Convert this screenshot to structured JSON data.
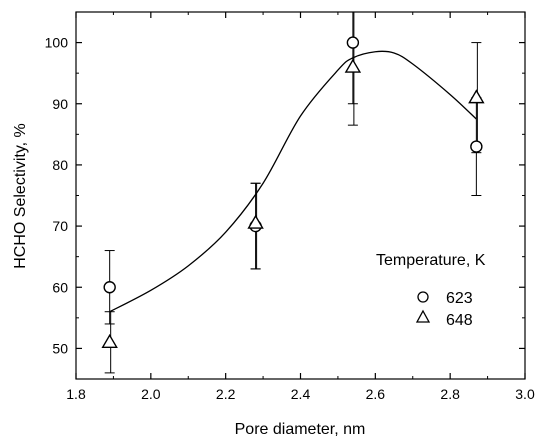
{
  "chart_data": {
    "type": "scatter",
    "xlabel": "Pore diameter, nm",
    "ylabel": "HCHO Selectivity, %",
    "xlim": [
      1.8,
      3.0
    ],
    "ylim": [
      45,
      105
    ],
    "xticks": [
      1.8,
      2.0,
      2.2,
      2.4,
      2.6,
      2.8,
      3.0
    ],
    "xtick_labels": [
      "1.8",
      "2.0",
      "2.2",
      "2.4",
      "2.6",
      "2.8",
      "3.0"
    ],
    "yticks": [
      50,
      60,
      70,
      80,
      90,
      100
    ],
    "ytick_labels": [
      "50",
      "60",
      "70",
      "80",
      "90",
      "100"
    ],
    "grid": false,
    "legend": {
      "title": "Temperature, K",
      "position": "right-middle"
    },
    "series": [
      {
        "name": "623",
        "marker": "circle",
        "x": [
          1.89,
          2.28,
          2.54,
          2.87
        ],
        "y": [
          60,
          70,
          100,
          83
        ],
        "err_low": [
          54,
          63,
          90,
          75
        ],
        "err_high": [
          66,
          77,
          105,
          91
        ]
      },
      {
        "name": "648",
        "marker": "triangle",
        "x": [
          1.89,
          2.28,
          2.54,
          2.87
        ],
        "y": [
          51,
          70.5,
          96,
          91
        ],
        "err_low": [
          46,
          63,
          86.5,
          82
        ],
        "err_high": [
          56,
          77,
          105,
          100
        ]
      }
    ],
    "fit_curve": {
      "x": [
        1.89,
        2.0,
        2.1,
        2.2,
        2.3,
        2.4,
        2.5,
        2.54,
        2.6,
        2.65,
        2.7,
        2.8,
        2.87
      ],
      "y": [
        56,
        59.5,
        63.5,
        69,
        77,
        88,
        95.5,
        97.5,
        98.5,
        98.3,
        96.5,
        91.5,
        87.5
      ]
    }
  }
}
